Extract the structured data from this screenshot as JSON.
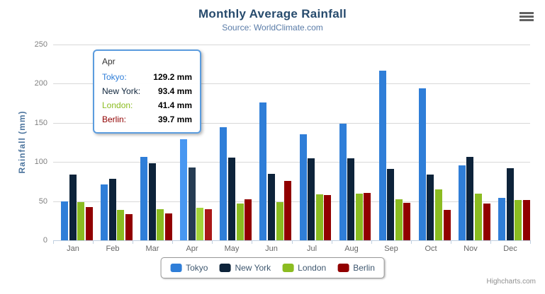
{
  "chart_data": {
    "type": "bar",
    "title": "Monthly Average Rainfall",
    "subtitle": "Source: WorldClimate.com",
    "ylabel": "Rainfall (mm)",
    "xlabel": "",
    "ylim": [
      0,
      250
    ],
    "ytick_step": 50,
    "grid": true,
    "legend_position": "bottom",
    "hovered_category_index": 3,
    "categories": [
      "Jan",
      "Feb",
      "Mar",
      "Apr",
      "May",
      "Jun",
      "Jul",
      "Aug",
      "Sep",
      "Oct",
      "Nov",
      "Dec"
    ],
    "series": [
      {
        "name": "Tokyo",
        "color": "#2f7ed8",
        "hover_color": "#4897f1",
        "values": [
          49.9,
          71.5,
          106.4,
          129.2,
          144.0,
          176.0,
          135.6,
          148.5,
          216.4,
          194.1,
          95.6,
          54.4
        ]
      },
      {
        "name": "New York",
        "color": "#0d233a",
        "hover_color": "#263c53",
        "values": [
          83.6,
          78.8,
          98.5,
          93.4,
          106.0,
          84.5,
          105.0,
          104.3,
          91.2,
          83.5,
          106.6,
          92.3
        ]
      },
      {
        "name": "London",
        "color": "#8bbc21",
        "hover_color": "#a4d53a",
        "values": [
          48.9,
          38.8,
          39.3,
          41.4,
          47.0,
          48.3,
          59.0,
          59.6,
          52.4,
          65.2,
          59.3,
          51.2
        ]
      },
      {
        "name": "Berlin",
        "color": "#910000",
        "hover_color": "#aa1919",
        "values": [
          42.4,
          33.2,
          34.5,
          39.7,
          52.6,
          75.5,
          57.4,
          60.4,
          47.6,
          39.1,
          46.8,
          51.1
        ]
      }
    ]
  },
  "tooltip": {
    "title": "Apr",
    "border_color": "#5b9cde",
    "rows": [
      {
        "label": "Tokyo:",
        "value": "129.2 mm",
        "color": "#2f7ed8"
      },
      {
        "label": "New York:",
        "value": "93.4 mm",
        "color": "#0d233a"
      },
      {
        "label": "London:",
        "value": "41.4 mm",
        "color": "#8bbc21"
      },
      {
        "label": "Berlin:",
        "value": "39.7 mm",
        "color": "#910000"
      }
    ]
  },
  "context_menu": {
    "icon": "hamburger-icon"
  },
  "credits": {
    "label": "Highcharts.com"
  }
}
